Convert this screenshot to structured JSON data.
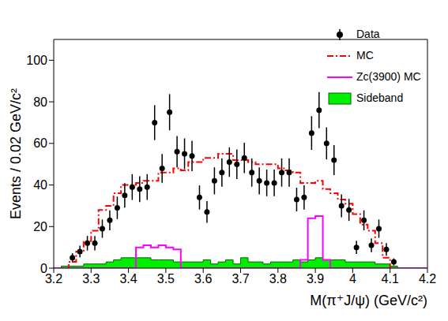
{
  "chart_data": {
    "type": "histogram",
    "xlabel": "M(π⁺J/ψ) (GeV/c²)",
    "ylabel": "Events / 0.02 GeV/c²",
    "xlim": [
      3.2,
      4.2
    ],
    "xticks": [
      3.2,
      3.3,
      3.4,
      3.5,
      3.6,
      3.7,
      3.8,
      3.9,
      4,
      4.1,
      4.2
    ],
    "ylim": [
      0,
      110
    ],
    "yticks": [
      0,
      20,
      40,
      60,
      80,
      100
    ],
    "legend": "upper right",
    "grid": false,
    "bins": [
      3.2,
      3.22,
      3.24,
      3.26,
      3.28,
      3.3,
      3.32,
      3.34,
      3.36,
      3.38,
      3.4,
      3.42,
      3.44,
      3.46,
      3.48,
      3.5,
      3.52,
      3.54,
      3.56,
      3.58,
      3.6,
      3.62,
      3.64,
      3.66,
      3.68,
      3.7,
      3.72,
      3.74,
      3.76,
      3.78,
      3.8,
      3.82,
      3.84,
      3.86,
      3.88,
      3.9,
      3.92,
      3.94,
      3.96,
      3.98,
      4,
      4.02,
      4.04,
      4.06,
      4.08,
      4.1,
      4.12,
      4.14,
      4.16,
      4.18,
      4.2
    ],
    "series": [
      {
        "name": "Data",
        "type": "scatter",
        "marker": "o",
        "color": "#000000",
        "x": [
          3.25,
          3.27,
          3.29,
          3.31,
          3.33,
          3.35,
          3.37,
          3.39,
          3.41,
          3.43,
          3.45,
          3.47,
          3.49,
          3.51,
          3.53,
          3.55,
          3.57,
          3.59,
          3.61,
          3.63,
          3.65,
          3.67,
          3.69,
          3.71,
          3.73,
          3.75,
          3.77,
          3.79,
          3.81,
          3.83,
          3.85,
          3.87,
          3.89,
          3.91,
          3.93,
          3.95,
          3.97,
          3.99,
          4.01,
          4.03,
          4.05,
          4.07,
          4.09,
          4.11
        ],
        "values": [
          5,
          8,
          12,
          12,
          19,
          23,
          29,
          35,
          39,
          38,
          39,
          70,
          48,
          75,
          56,
          55,
          54,
          34,
          27,
          42,
          46,
          51,
          50,
          53,
          46,
          42,
          41,
          41,
          46,
          46,
          33,
          34,
          65,
          76,
          60,
          52,
          30,
          28,
          10,
          23,
          11,
          19,
          9,
          3
        ],
        "errors": [
          2.2,
          2.8,
          3.5,
          3.5,
          4.4,
          4.8,
          5.4,
          5.9,
          6.2,
          6.2,
          6.2,
          8.4,
          6.9,
          8.7,
          7.5,
          7.4,
          7.3,
          5.8,
          5.2,
          6.5,
          6.8,
          7.1,
          7.1,
          7.3,
          6.8,
          6.5,
          6.4,
          6.4,
          6.8,
          6.8,
          5.7,
          5.8,
          8.1,
          8.7,
          7.7,
          7.2,
          5.5,
          5.3,
          3.2,
          4.8,
          3.3,
          4.4,
          3,
          1.7
        ]
      },
      {
        "name": "MC",
        "type": "step",
        "line_style": "dashdot",
        "color": "#ff0000",
        "values": [
          0,
          0,
          3,
          8,
          13,
          18,
          28,
          30,
          36,
          40,
          40,
          41,
          42,
          42,
          46,
          46,
          48,
          47,
          51,
          51,
          53,
          53,
          55,
          55,
          52,
          52,
          51,
          50,
          50,
          50,
          48,
          47,
          46,
          41,
          41,
          42,
          38,
          36,
          33,
          31,
          26,
          21,
          18,
          12,
          5,
          0,
          0,
          0,
          0,
          0
        ]
      },
      {
        "name": "Zc(3900) MC",
        "type": "step",
        "line_style": "solid",
        "color": "#ff00ff",
        "values": [
          0,
          0,
          0,
          0,
          0,
          0,
          0,
          0,
          0,
          0,
          0,
          10,
          11,
          10,
          11,
          10,
          9,
          0,
          0,
          0,
          0,
          0,
          0,
          0,
          0,
          0,
          0,
          0,
          0,
          0,
          0,
          0,
          0,
          4,
          24,
          25,
          4,
          0,
          0,
          0,
          0,
          0,
          0,
          0,
          0,
          0,
          0,
          0,
          0,
          0
        ]
      },
      {
        "name": "Sideband",
        "type": "area",
        "color": "#00ee00",
        "values": [
          0,
          1,
          1,
          1,
          2,
          2,
          2,
          3,
          4,
          5,
          5,
          5,
          5,
          4,
          4,
          4,
          3,
          3,
          3,
          3,
          4,
          2,
          3,
          4,
          2,
          5,
          3,
          3,
          2,
          3,
          3,
          3,
          4,
          3,
          4,
          5,
          4,
          4,
          4,
          3,
          3,
          3,
          3,
          2,
          2,
          1,
          0,
          0,
          0,
          0
        ]
      }
    ]
  }
}
